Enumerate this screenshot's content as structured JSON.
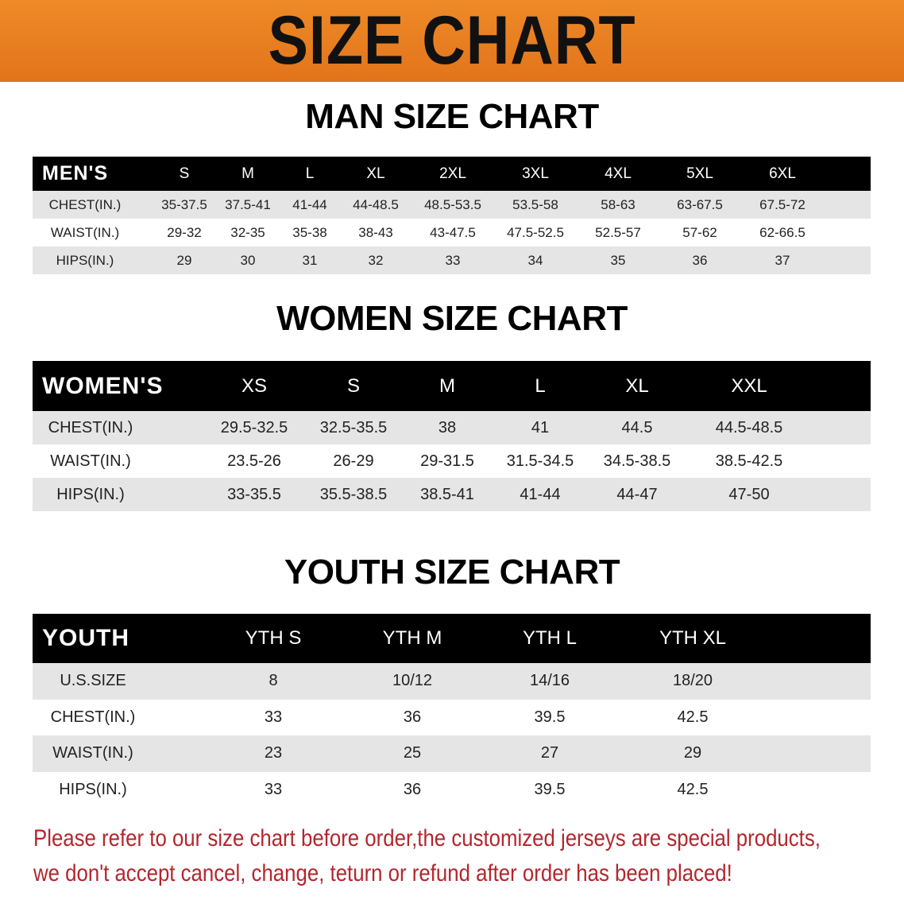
{
  "banner_title": "SIZE CHART",
  "accent_color": "#e8801f",
  "note_color": "#b3262d",
  "men": {
    "title": "MAN SIZE CHART",
    "header": [
      "MEN'S",
      "S",
      "M",
      "L",
      "XL",
      "2XL",
      "3XL",
      "4XL",
      "5XL",
      "6XL"
    ],
    "rows": [
      [
        "CHEST(IN.)",
        "35-37.5",
        "37.5-41",
        "41-44",
        "44-48.5",
        "48.5-53.5",
        "53.5-58",
        "58-63",
        "63-67.5",
        "67.5-72"
      ],
      [
        "WAIST(IN.)",
        "29-32",
        "32-35",
        "35-38",
        "38-43",
        "43-47.5",
        "47.5-52.5",
        "52.5-57",
        "57-62",
        "62-66.5"
      ],
      [
        "HIPS(IN.)",
        "29",
        "30",
        "31",
        "32",
        "33",
        "34",
        "35",
        "36",
        "37"
      ]
    ]
  },
  "women": {
    "title": "WOMEN SIZE CHART",
    "header": [
      "WOMEN'S",
      "XS",
      "S",
      "M",
      "L",
      "XL",
      "XXL"
    ],
    "rows": [
      [
        "CHEST(IN.)",
        "29.5-32.5",
        "32.5-35.5",
        "38",
        "41",
        "44.5",
        "44.5-48.5"
      ],
      [
        "WAIST(IN.)",
        "23.5-26",
        "26-29",
        "29-31.5",
        "31.5-34.5",
        "34.5-38.5",
        "38.5-42.5"
      ],
      [
        "HIPS(IN.)",
        "33-35.5",
        "35.5-38.5",
        "38.5-41",
        "41-44",
        "44-47",
        "47-50"
      ]
    ]
  },
  "youth": {
    "title": "YOUTH SIZE CHART",
    "header": [
      "YOUTH",
      "YTH S",
      "YTH M",
      "YTH L",
      "YTH XL"
    ],
    "rows": [
      [
        "U.S.SIZE",
        "8",
        "10/12",
        "14/16",
        "18/20"
      ],
      [
        "CHEST(IN.)",
        "33",
        "36",
        "39.5",
        "42.5"
      ],
      [
        "WAIST(IN.)",
        "23",
        "25",
        "27",
        "29"
      ],
      [
        "HIPS(IN.)",
        "33",
        "36",
        "39.5",
        "42.5"
      ]
    ]
  },
  "notice": {
    "line1": "Please refer to our size chart before order,the customized jerseys are special products,",
    "line2": "we don't accept cancel, change, teturn or refund after order has been placed!"
  }
}
